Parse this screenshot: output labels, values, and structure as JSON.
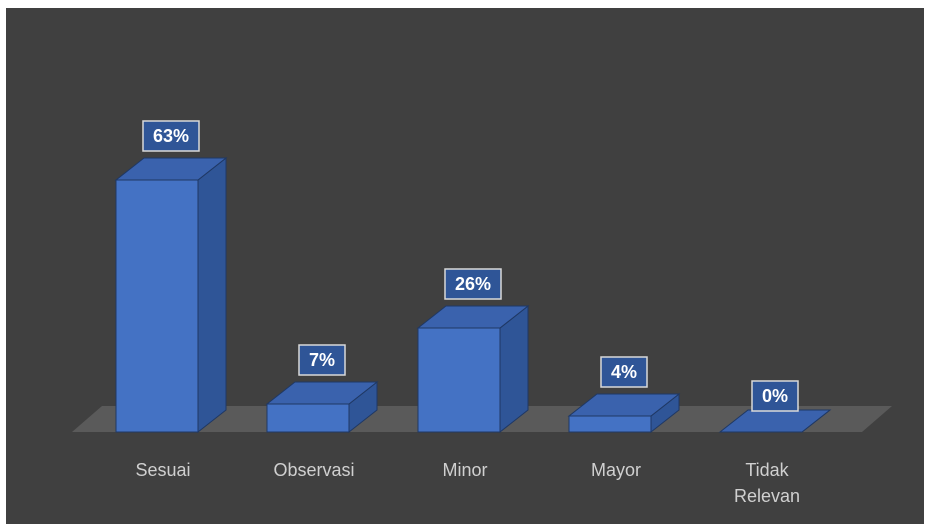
{
  "chart_data": {
    "type": "bar",
    "style": "3d-column",
    "title": "",
    "xlabel": "",
    "ylabel": "",
    "categories": [
      "Sesuai",
      "Observasi",
      "Minor",
      "Mayor",
      "Tidak Relevan"
    ],
    "category_lines": [
      [
        "Sesuai"
      ],
      [
        "Observasi"
      ],
      [
        "Minor"
      ],
      [
        "Mayor"
      ],
      [
        "Tidak",
        "Relevan"
      ]
    ],
    "values": [
      63,
      7,
      26,
      4,
      0
    ],
    "data_labels": [
      "63%",
      "7%",
      "26%",
      "4%",
      "0%"
    ],
    "unit": "%",
    "ylim": [
      0,
      63
    ],
    "grid": false,
    "legend": "none",
    "colors": {
      "background": "#404040",
      "floor": "#5a5a5a",
      "bar_front": "#4472c4",
      "bar_top": "#3a62ad",
      "bar_side": "#2f5597",
      "bar_edge": "#1f3864",
      "label_box": "#2f5597",
      "label_border": "#d9d9d9",
      "category_text": "#d0d0d0"
    }
  }
}
